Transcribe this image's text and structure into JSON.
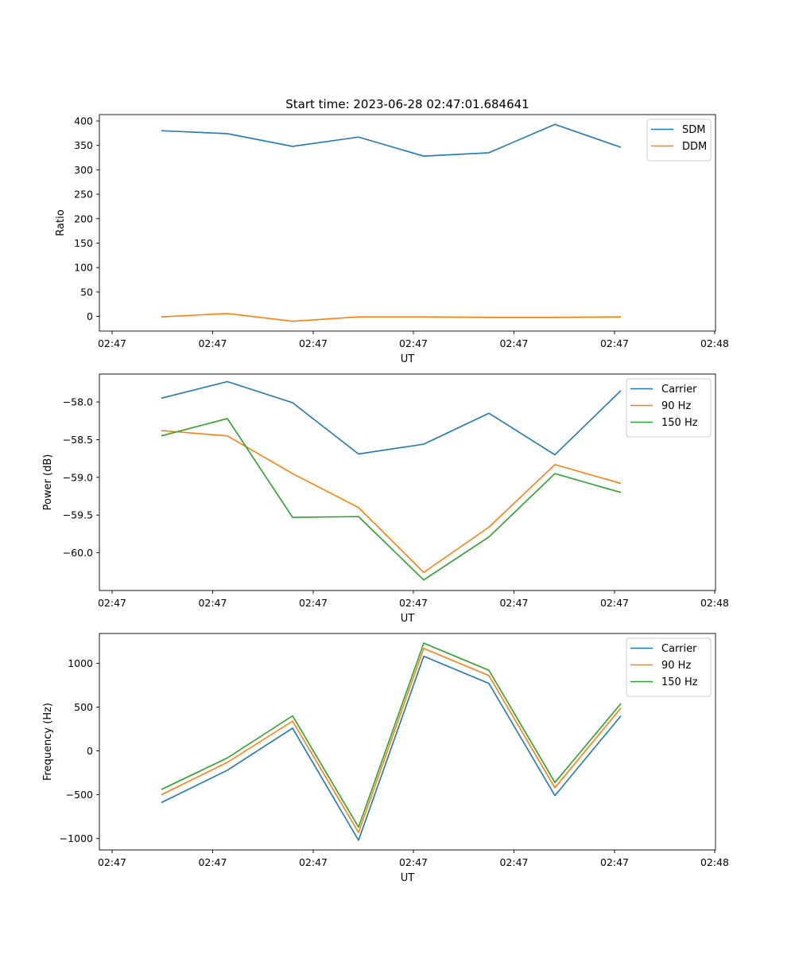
{
  "title": "Start time: 2023-06-28 02:47:01.684641",
  "x_tick_labels": [
    "02:47",
    "02:47",
    "02:47",
    "02:47",
    "02:47",
    "02:47",
    "02:48"
  ],
  "chart_data": [
    {
      "type": "line",
      "title": "Start time: 2023-06-28 02:47:01.684641",
      "xlabel": "UT",
      "ylabel": "Ratio",
      "ylim": [
        -30,
        413
      ],
      "yticks": [
        0,
        50,
        100,
        150,
        200,
        250,
        300,
        350,
        400
      ],
      "ytick_labels": [
        "0",
        "50",
        "100",
        "150",
        "200",
        "250",
        "300",
        "350",
        "400"
      ],
      "x_tick_labels": [
        "02:47",
        "02:47",
        "02:47",
        "02:47",
        "02:47",
        "02:47",
        "02:48"
      ],
      "legend": "top-right",
      "series": [
        {
          "name": "SDM",
          "color": "#1f77b4",
          "values": [
            380,
            374,
            348,
            367,
            328,
            335,
            393,
            346
          ]
        },
        {
          "name": "DDM",
          "color": "#ff7f0e",
          "values": [
            -1,
            6,
            -10,
            -1,
            -1,
            -2,
            -2,
            -1
          ]
        }
      ]
    },
    {
      "type": "line",
      "xlabel": "UT",
      "ylabel": "Power (dB)",
      "ylim": [
        -60.5,
        -57.63
      ],
      "yticks": [
        -60.0,
        -59.5,
        -59.0,
        -58.5,
        -58.0
      ],
      "ytick_labels": [
        "−60.0",
        "−59.5",
        "−59.0",
        "−58.5",
        "−58.0"
      ],
      "x_tick_labels": [
        "02:47",
        "02:47",
        "02:47",
        "02:47",
        "02:47",
        "02:47",
        "02:48"
      ],
      "legend": "top-right",
      "series": [
        {
          "name": "Carrier",
          "color": "#1f77b4",
          "values": [
            -57.95,
            -57.73,
            -58.01,
            -58.69,
            -58.56,
            -58.15,
            -58.7,
            -57.85
          ]
        },
        {
          "name": "90 Hz",
          "color": "#ff7f0e",
          "values": [
            -58.38,
            -58.45,
            -58.95,
            -59.4,
            -60.26,
            -59.66,
            -58.83,
            -59.08
          ]
        },
        {
          "name": "150 Hz",
          "color": "#2ca02c",
          "values": [
            -58.45,
            -58.22,
            -59.53,
            -59.52,
            -60.36,
            -59.79,
            -58.95,
            -59.2
          ]
        }
      ]
    },
    {
      "type": "line",
      "xlabel": "UT",
      "ylabel": "Frequency (Hz)",
      "ylim": [
        -1130,
        1340
      ],
      "yticks": [
        -1000,
        -500,
        0,
        500,
        1000
      ],
      "ytick_labels": [
        "−1000",
        "−500",
        "0",
        "500",
        "1000"
      ],
      "x_tick_labels": [
        "02:47",
        "02:47",
        "02:47",
        "02:47",
        "02:47",
        "02:47",
        "02:48"
      ],
      "legend": "top-right",
      "series": [
        {
          "name": "Carrier",
          "color": "#1f77b4",
          "values": [
            -590,
            -220,
            260,
            -1020,
            1080,
            770,
            -510,
            400
          ]
        },
        {
          "name": "90 Hz",
          "color": "#ff7f0e",
          "values": [
            -500,
            -130,
            340,
            -930,
            1170,
            860,
            -420,
            490
          ]
        },
        {
          "name": "150 Hz",
          "color": "#2ca02c",
          "values": [
            -440,
            -80,
            400,
            -870,
            1230,
            920,
            -360,
            540
          ]
        }
      ]
    }
  ]
}
